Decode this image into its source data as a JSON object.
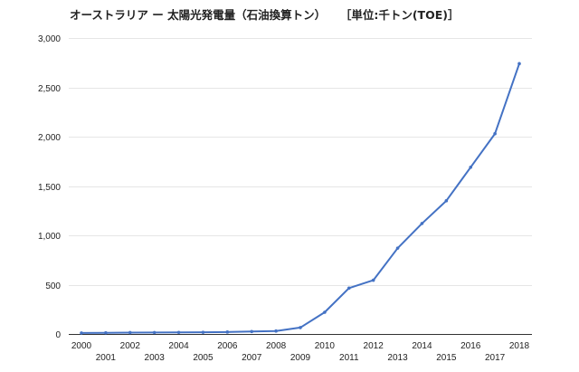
{
  "chart_data": {
    "type": "line",
    "title": "オーストラリア ー 太陽光発電量（石油換算トン）",
    "unit": "［単位:千トン(TOE)］",
    "xlabel": "",
    "ylabel": "",
    "ylim": [
      0,
      3000
    ],
    "yticks": [
      0,
      500,
      1000,
      1500,
      2000,
      2500,
      3000
    ],
    "ytick_labels": [
      "0",
      "500",
      "1,000",
      "1,500",
      "2,000",
      "2,500",
      "3,000"
    ],
    "grid": true,
    "legend": "none",
    "series": [
      {
        "color": "#4472c4",
        "x": [
          "2000",
          "2001",
          "2002",
          "2003",
          "2004",
          "2005",
          "2006",
          "2007",
          "2008",
          "2009",
          "2010",
          "2011",
          "2012",
          "2013",
          "2014",
          "2015",
          "2016",
          "2017",
          "2018"
        ],
        "values": [
          10,
          12,
          14,
          15,
          16,
          17,
          20,
          25,
          30,
          65,
          220,
          465,
          545,
          870,
          1120,
          1350,
          1690,
          2030,
          2740
        ]
      }
    ]
  }
}
